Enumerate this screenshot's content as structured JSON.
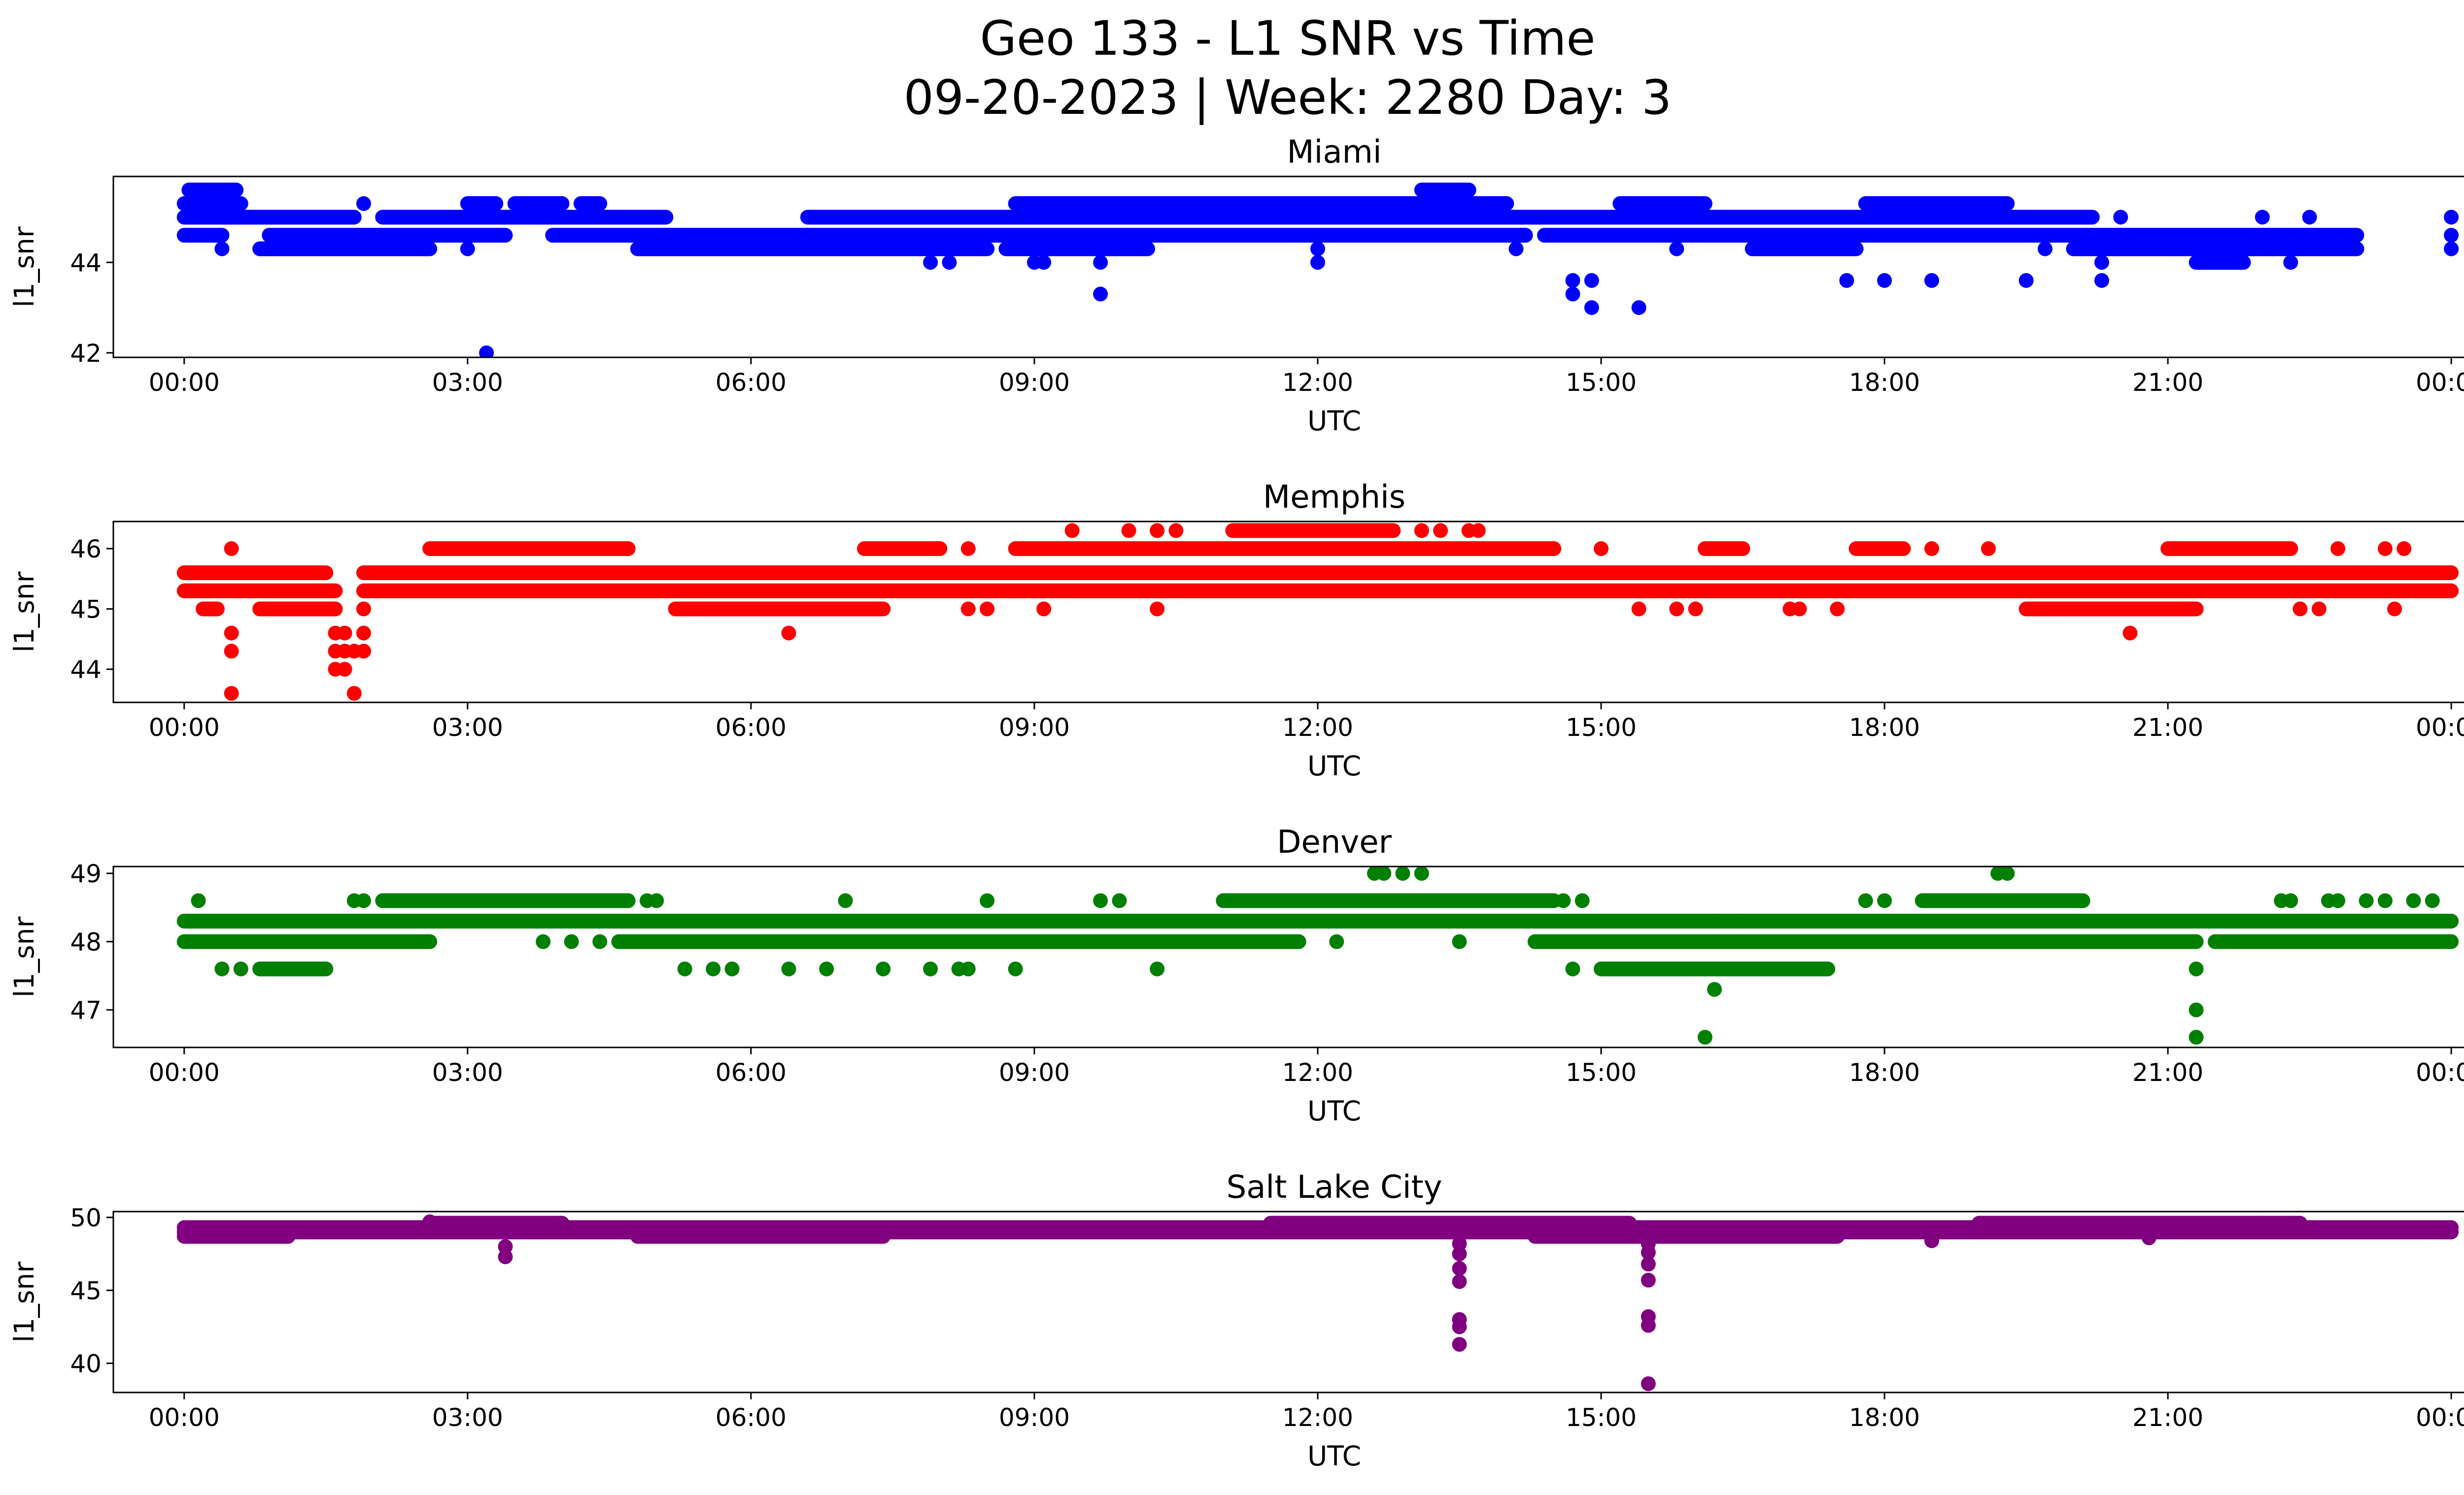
{
  "figure": {
    "title_line1": "Geo 133 - L1 SNR vs Time",
    "title_line2": "09-20-2023 | Week: 2280 Day: 3"
  },
  "chart_data": [
    {
      "type": "scatter",
      "title": "Miami",
      "xlabel": "UTC",
      "ylabel": "l1_snr",
      "color": "#0000ff",
      "xlim_hours": [
        -0.75,
        25.1
      ],
      "ylim": [
        41.9,
        45.9
      ],
      "yticks": [
        42,
        44
      ],
      "xticks": [
        "00:00",
        "03:00",
        "06:00",
        "09:00",
        "12:00",
        "15:00",
        "18:00",
        "21:00",
        "00:00"
      ],
      "levels": [
        44.3,
        44.6,
        45.0,
        45.3,
        45.6
      ],
      "bands": [
        {
          "y": 44.6,
          "from": 0.0,
          "to": 0.4
        },
        {
          "y": 45.0,
          "from": 0.0,
          "to": 1.8
        },
        {
          "y": 45.3,
          "from": 0.0,
          "to": 0.6
        },
        {
          "y": 45.6,
          "from": 0.05,
          "to": 0.55
        },
        {
          "y": 44.6,
          "from": 0.9,
          "to": 3.4
        },
        {
          "y": 44.3,
          "from": 0.8,
          "to": 2.6
        },
        {
          "y": 45.0,
          "from": 2.1,
          "to": 5.1
        },
        {
          "y": 45.3,
          "from": 3.0,
          "to": 3.3
        },
        {
          "y": 45.3,
          "from": 3.5,
          "to": 4.0
        },
        {
          "y": 45.3,
          "from": 4.2,
          "to": 4.4
        },
        {
          "y": 44.6,
          "from": 3.9,
          "to": 14.2
        },
        {
          "y": 44.3,
          "from": 4.8,
          "to": 8.5
        },
        {
          "y": 45.0,
          "from": 6.6,
          "to": 20.2
        },
        {
          "y": 45.3,
          "from": 8.8,
          "to": 14.0
        },
        {
          "y": 45.6,
          "from": 13.1,
          "to": 13.6
        },
        {
          "y": 44.3,
          "from": 8.7,
          "to": 10.2
        },
        {
          "y": 44.6,
          "from": 14.4,
          "to": 23.0
        },
        {
          "y": 44.3,
          "from": 20.0,
          "to": 23.0
        },
        {
          "y": 45.3,
          "from": 15.2,
          "to": 16.1
        },
        {
          "y": 45.3,
          "from": 17.8,
          "to": 19.3
        },
        {
          "y": 44.3,
          "from": 16.6,
          "to": 17.7
        },
        {
          "y": 44.0,
          "from": 21.3,
          "to": 21.8
        }
      ],
      "points": [
        [
          0.4,
          44.3
        ],
        [
          3.2,
          42.0
        ],
        [
          3.0,
          44.3
        ],
        [
          1.9,
          45.3
        ],
        [
          7.9,
          44.0
        ],
        [
          8.1,
          44.0
        ],
        [
          9.0,
          44.0
        ],
        [
          9.1,
          44.0
        ],
        [
          9.7,
          44.0
        ],
        [
          9.7,
          43.3
        ],
        [
          12.0,
          44.0
        ],
        [
          12.0,
          44.3
        ],
        [
          14.1,
          44.3
        ],
        [
          14.7,
          43.6
        ],
        [
          14.7,
          43.3
        ],
        [
          14.9,
          43.6
        ],
        [
          14.9,
          43.0
        ],
        [
          15.4,
          43.0
        ],
        [
          15.8,
          44.3
        ],
        [
          17.6,
          43.6
        ],
        [
          18.0,
          43.6
        ],
        [
          18.5,
          43.6
        ],
        [
          19.5,
          43.6
        ],
        [
          19.7,
          44.3
        ],
        [
          20.3,
          43.6
        ],
        [
          20.3,
          44.0
        ],
        [
          20.5,
          45.0
        ],
        [
          22.0,
          45.0
        ],
        [
          22.5,
          45.0
        ],
        [
          22.1,
          44.3
        ],
        [
          22.3,
          44.0
        ],
        [
          24.0,
          45.0
        ],
        [
          24.0,
          44.6
        ],
        [
          24.0,
          44.3
        ]
      ]
    },
    {
      "type": "scatter",
      "title": "Memphis",
      "xlabel": "UTC",
      "ylabel": "l1_snr",
      "color": "#ff0000",
      "xlim_hours": [
        -0.75,
        25.1
      ],
      "ylim": [
        43.45,
        46.45
      ],
      "yticks": [
        44,
        45,
        46
      ],
      "xticks": [
        "00:00",
        "03:00",
        "06:00",
        "09:00",
        "12:00",
        "15:00",
        "18:00",
        "21:00",
        "00:00"
      ],
      "levels": [
        45.3,
        45.6,
        46.0
      ],
      "bands": [
        {
          "y": 45.3,
          "from": 0.0,
          "to": 1.6
        },
        {
          "y": 45.6,
          "from": 0.0,
          "to": 1.5
        },
        {
          "y": 45.0,
          "from": 0.2,
          "to": 0.35
        },
        {
          "y": 45.0,
          "from": 0.8,
          "to": 1.6
        },
        {
          "y": 45.3,
          "from": 1.9,
          "to": 24.0
        },
        {
          "y": 45.6,
          "from": 1.9,
          "to": 24.0
        },
        {
          "y": 46.0,
          "from": 2.6,
          "to": 4.7
        },
        {
          "y": 45.0,
          "from": 5.2,
          "to": 7.4
        },
        {
          "y": 46.0,
          "from": 7.2,
          "to": 8.0
        },
        {
          "y": 46.0,
          "from": 8.8,
          "to": 14.5
        },
        {
          "y": 46.3,
          "from": 11.1,
          "to": 12.8
        },
        {
          "y": 46.0,
          "from": 16.1,
          "to": 16.5
        },
        {
          "y": 45.0,
          "from": 19.5,
          "to": 21.3
        },
        {
          "y": 46.0,
          "from": 21.0,
          "to": 22.3
        },
        {
          "y": 46.0,
          "from": 17.7,
          "to": 18.2
        }
      ],
      "points": [
        [
          0.5,
          46.0
        ],
        [
          0.5,
          44.6
        ],
        [
          0.5,
          44.3
        ],
        [
          0.5,
          43.6
        ],
        [
          1.6,
          44.6
        ],
        [
          1.6,
          44.3
        ],
        [
          1.6,
          44.0
        ],
        [
          1.7,
          44.6
        ],
        [
          1.7,
          44.3
        ],
        [
          1.7,
          44.0
        ],
        [
          1.8,
          44.3
        ],
        [
          1.8,
          43.6
        ],
        [
          1.9,
          44.6
        ],
        [
          1.9,
          44.3
        ],
        [
          1.9,
          45.0
        ],
        [
          6.4,
          44.6
        ],
        [
          6.2,
          45.6
        ],
        [
          8.3,
          46.0
        ],
        [
          9.4,
          46.3
        ],
        [
          10.0,
          46.3
        ],
        [
          10.3,
          46.3
        ],
        [
          10.5,
          46.3
        ],
        [
          13.1,
          46.3
        ],
        [
          13.3,
          46.3
        ],
        [
          13.6,
          46.3
        ],
        [
          13.7,
          46.3
        ],
        [
          15.0,
          46.0
        ],
        [
          12.6,
          45.3
        ],
        [
          13.1,
          45.3
        ],
        [
          10.3,
          45.0
        ],
        [
          9.1,
          45.0
        ],
        [
          8.3,
          45.0
        ],
        [
          8.5,
          45.0
        ],
        [
          15.4,
          45.0
        ],
        [
          15.8,
          45.0
        ],
        [
          16.0,
          45.0
        ],
        [
          17.0,
          45.0
        ],
        [
          17.1,
          45.0
        ],
        [
          17.5,
          45.0
        ],
        [
          18.5,
          46.0
        ],
        [
          19.1,
          46.0
        ],
        [
          20.6,
          44.6
        ],
        [
          21.2,
          45.0
        ],
        [
          22.4,
          45.0
        ],
        [
          22.6,
          45.0
        ],
        [
          22.8,
          46.0
        ],
        [
          23.3,
          46.0
        ],
        [
          23.5,
          46.0
        ],
        [
          23.4,
          45.0
        ]
      ]
    },
    {
      "type": "scatter",
      "title": "Denver",
      "xlabel": "UTC",
      "ylabel": "l1_snr",
      "color": "#008000",
      "xlim_hours": [
        -0.75,
        25.1
      ],
      "ylim": [
        46.45,
        49.1
      ],
      "yticks": [
        47,
        48,
        49
      ],
      "xticks": [
        "00:00",
        "03:00",
        "06:00",
        "09:00",
        "12:00",
        "15:00",
        "18:00",
        "21:00",
        "00:00"
      ],
      "levels": [
        48.0,
        48.3,
        48.6
      ],
      "bands": [
        {
          "y": 48.3,
          "from": 0.0,
          "to": 24.0
        },
        {
          "y": 48.0,
          "from": 0.0,
          "to": 2.6
        },
        {
          "y": 47.6,
          "from": 0.8,
          "to": 1.5
        },
        {
          "y": 48.6,
          "from": 2.1,
          "to": 4.7
        },
        {
          "y": 48.0,
          "from": 4.6,
          "to": 11.8
        },
        {
          "y": 48.6,
          "from": 11.0,
          "to": 14.5
        },
        {
          "y": 48.0,
          "from": 14.3,
          "to": 21.3
        },
        {
          "y": 47.6,
          "from": 15.0,
          "to": 17.4
        },
        {
          "y": 48.6,
          "from": 18.4,
          "to": 20.1
        },
        {
          "y": 48.0,
          "from": 21.5,
          "to": 24.0
        }
      ],
      "points": [
        [
          0.15,
          48.6
        ],
        [
          0.4,
          47.6
        ],
        [
          0.6,
          47.6
        ],
        [
          1.8,
          48.6
        ],
        [
          1.9,
          48.6
        ],
        [
          3.8,
          48.0
        ],
        [
          4.1,
          48.0
        ],
        [
          4.4,
          48.0
        ],
        [
          4.9,
          48.6
        ],
        [
          5.0,
          48.6
        ],
        [
          5.3,
          47.6
        ],
        [
          5.6,
          47.6
        ],
        [
          5.8,
          47.6
        ],
        [
          6.4,
          47.6
        ],
        [
          6.8,
          47.6
        ],
        [
          7.0,
          48.6
        ],
        [
          7.4,
          47.6
        ],
        [
          7.9,
          47.6
        ],
        [
          8.2,
          47.6
        ],
        [
          8.3,
          47.6
        ],
        [
          8.5,
          48.6
        ],
        [
          8.8,
          47.6
        ],
        [
          9.7,
          48.6
        ],
        [
          9.9,
          48.6
        ],
        [
          10.3,
          47.6
        ],
        [
          12.2,
          48.0
        ],
        [
          12.6,
          49.0
        ],
        [
          12.7,
          49.0
        ],
        [
          12.9,
          49.0
        ],
        [
          13.1,
          49.0
        ],
        [
          13.5,
          48.0
        ],
        [
          14.6,
          48.6
        ],
        [
          14.7,
          47.6
        ],
        [
          14.8,
          48.6
        ],
        [
          16.1,
          46.6
        ],
        [
          16.2,
          47.3
        ],
        [
          16.2,
          48.3
        ],
        [
          16.5,
          48.3
        ],
        [
          17.8,
          48.6
        ],
        [
          18.0,
          48.6
        ],
        [
          19.2,
          49.0
        ],
        [
          19.3,
          49.0
        ],
        [
          21.3,
          47.6
        ],
        [
          21.3,
          47.0
        ],
        [
          21.3,
          46.6
        ],
        [
          22.2,
          48.6
        ],
        [
          22.3,
          48.6
        ],
        [
          22.7,
          48.6
        ],
        [
          22.8,
          48.6
        ],
        [
          23.1,
          48.6
        ],
        [
          23.3,
          48.6
        ],
        [
          23.6,
          48.6
        ],
        [
          23.8,
          48.6
        ]
      ]
    },
    {
      "type": "scatter",
      "title": "Salt Lake City",
      "xlabel": "UTC",
      "ylabel": "l1_snr",
      "color": "#800080",
      "xlim_hours": [
        -0.75,
        25.1
      ],
      "ylim": [
        38.0,
        50.4
      ],
      "yticks": [
        40,
        45,
        50
      ],
      "xticks": [
        "00:00",
        "03:00",
        "06:00",
        "09:00",
        "12:00",
        "15:00",
        "18:00",
        "21:00",
        "00:00"
      ],
      "levels": [
        48.7,
        49.0,
        49.3
      ],
      "bands": [
        {
          "y": 49.0,
          "from": 0.0,
          "to": 24.0
        },
        {
          "y": 49.3,
          "from": 0.0,
          "to": 24.0
        },
        {
          "y": 48.7,
          "from": 0.0,
          "to": 1.1
        },
        {
          "y": 49.6,
          "from": 2.6,
          "to": 4.0
        },
        {
          "y": 48.7,
          "from": 4.8,
          "to": 7.4
        },
        {
          "y": 49.6,
          "from": 11.5,
          "to": 15.3
        },
        {
          "y": 48.7,
          "from": 14.3,
          "to": 17.5
        },
        {
          "y": 49.6,
          "from": 19.0,
          "to": 22.4
        }
      ],
      "points": [
        [
          3.4,
          48.0
        ],
        [
          3.4,
          47.3
        ],
        [
          13.5,
          48.2
        ],
        [
          13.5,
          47.5
        ],
        [
          13.5,
          46.5
        ],
        [
          13.5,
          45.6
        ],
        [
          13.5,
          43.0
        ],
        [
          13.5,
          42.5
        ],
        [
          13.5,
          41.3
        ],
        [
          15.5,
          48.2
        ],
        [
          15.5,
          47.6
        ],
        [
          15.5,
          46.8
        ],
        [
          15.5,
          45.7
        ],
        [
          15.5,
          43.2
        ],
        [
          15.5,
          42.6
        ],
        [
          15.5,
          38.6
        ],
        [
          18.5,
          48.4
        ],
        [
          20.8,
          48.6
        ],
        [
          22.0,
          49.6
        ],
        [
          2.6,
          49.7
        ]
      ]
    }
  ]
}
